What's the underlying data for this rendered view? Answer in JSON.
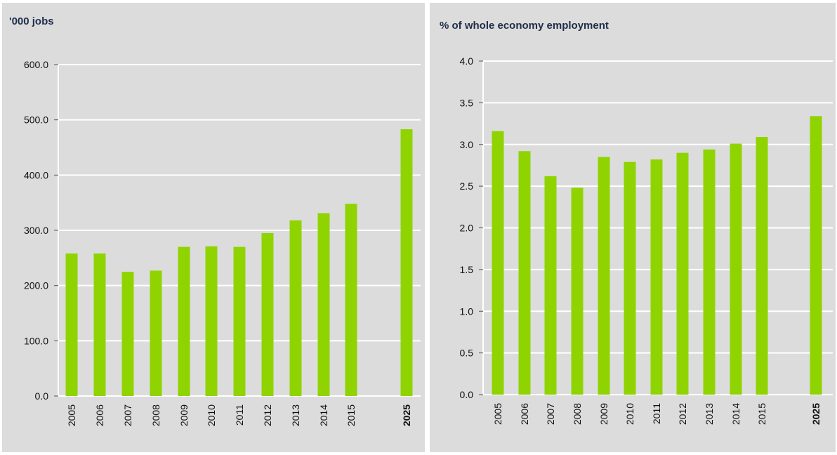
{
  "chart_data": [
    {
      "type": "bar",
      "title": "'000 jobs",
      "xlabel": "",
      "ylabel": "",
      "categories": [
        "2005",
        "2006",
        "2007",
        "2008",
        "2009",
        "2010",
        "2011",
        "2012",
        "2013",
        "2014",
        "2015",
        "2025"
      ],
      "values": [
        258,
        258,
        225,
        227,
        270,
        271,
        270,
        295,
        318,
        331,
        348,
        483
      ],
      "ylim": [
        0,
        600
      ],
      "yticks": [
        "0.0",
        "100.0",
        "200.0",
        "300.0",
        "400.0",
        "500.0",
        "600.0"
      ],
      "bold_categories": [
        "2025"
      ],
      "bar_color": "#8fd400",
      "grid": true
    },
    {
      "type": "bar",
      "title": "% of whole economy employment",
      "xlabel": "",
      "ylabel": "",
      "categories": [
        "2005",
        "2006",
        "2007",
        "2008",
        "2009",
        "2010",
        "2011",
        "2012",
        "2013",
        "2014",
        "2015",
        "2025"
      ],
      "values": [
        3.16,
        2.92,
        2.62,
        2.48,
        2.85,
        2.79,
        2.82,
        2.9,
        2.94,
        3.01,
        3.09,
        3.34
      ],
      "ylim": [
        0,
        4
      ],
      "yticks": [
        "0.0",
        "0.5",
        "1.0",
        "1.5",
        "2.0",
        "2.5",
        "3.0",
        "3.5",
        "4.0"
      ],
      "bold_categories": [
        "2025"
      ],
      "bar_color": "#8fd400",
      "grid": true
    }
  ]
}
